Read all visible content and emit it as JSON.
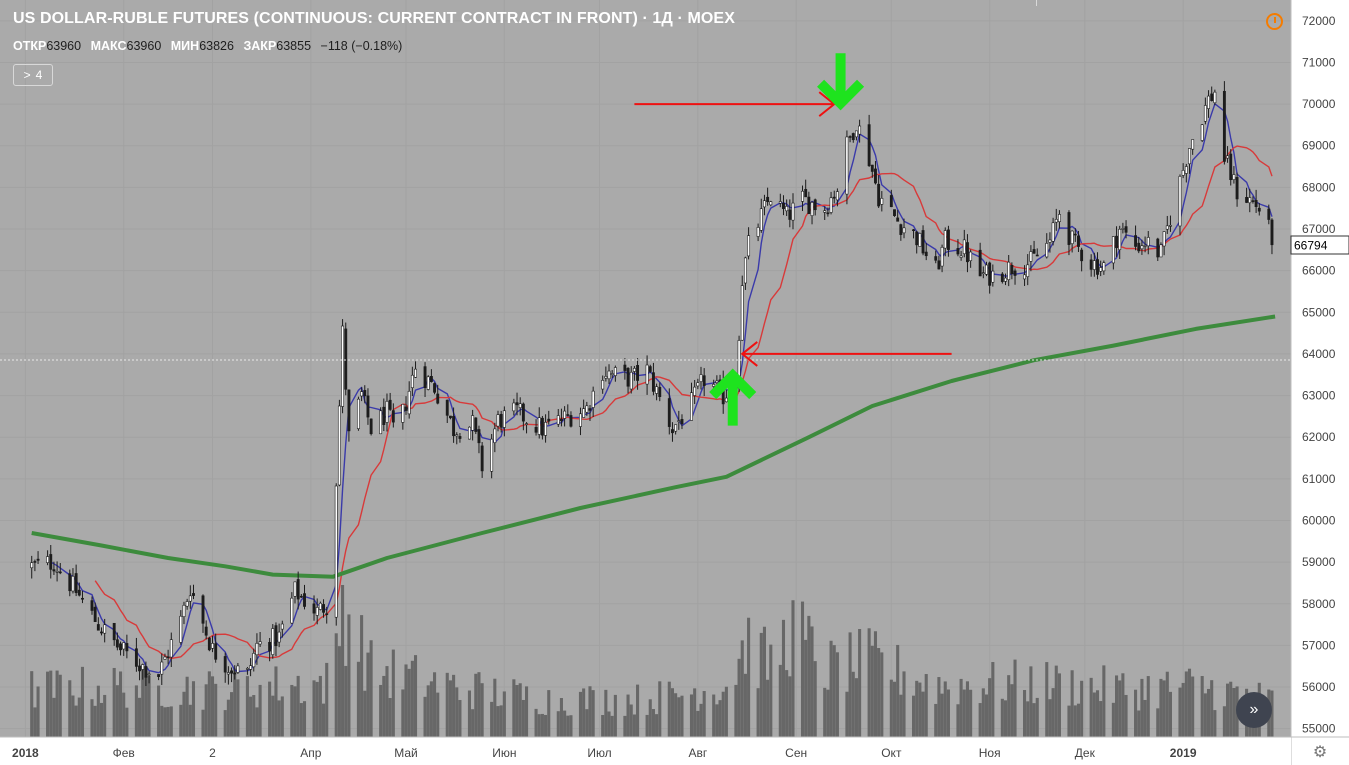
{
  "header": {
    "title": "US DOLLAR-RUBLE FUTURES (CONTINUOUS: CURRENT CONTRACT IN FRONT) · 1Д · MOEX",
    "ohlc": [
      {
        "key": "ОТКР",
        "value": "63960"
      },
      {
        "key": "МАКС",
        "value": "63960"
      },
      {
        "key": "МИН",
        "value": "63826"
      },
      {
        "key": "ЗАКР",
        "value": "63855"
      }
    ],
    "change": "−118 (−0.18%)",
    "indicator_toggle": {
      "chevron": ">",
      "count": "4"
    }
  },
  "price_axis": {
    "labels": [
      "72000",
      "71000",
      "70000",
      "69000",
      "68000",
      "67000",
      "66000",
      "65000",
      "64000",
      "63000",
      "62000",
      "61000",
      "60000",
      "59000",
      "58000",
      "57000",
      "56000",
      "55000"
    ],
    "last_price_label": "66794"
  },
  "time_axis": {
    "labels": [
      "2018",
      "Фев",
      "2",
      "Апр",
      "Май",
      "Июн",
      "Июл",
      "Авг",
      "Сен",
      "Окт",
      "Ноя",
      "Дек",
      "2019"
    ]
  },
  "icons": {
    "clock": "clock-icon",
    "scroll": "scroll-to-realtime-icon",
    "settings": "gear-icon"
  },
  "colors": {
    "background": "#aaaaaa",
    "candle_up": "#ffffff",
    "candle_down": "#1c1c1c",
    "fast_ma": "#3a3aaa",
    "slow_ma": "#d83a3a",
    "long_ma": "#3d8b3d",
    "volume": "#676767",
    "arrow_red": "#ee1111",
    "arrow_green": "#1ee31e"
  },
  "chart_data": {
    "type": "candlestick",
    "title": "US DOLLAR-RUBLE FUTURES (CONTINUOUS: CURRENT CONTRACT IN FRONT)",
    "interval": "1Д",
    "exchange": "MOEX",
    "ylim": [
      54800,
      72500
    ],
    "price_path": [
      [
        "2018-01-03",
        58900
      ],
      [
        "2018-01-10",
        59000
      ],
      [
        "2018-01-17",
        58300
      ],
      [
        "2018-01-24",
        57500
      ],
      [
        "2018-01-31",
        56900
      ],
      [
        "2018-02-07",
        56500
      ],
      [
        "2018-02-12",
        56300
      ],
      [
        "2018-02-19",
        57600
      ],
      [
        "2018-02-22",
        58400
      ],
      [
        "2018-03-01",
        56900
      ],
      [
        "2018-03-06",
        56500
      ],
      [
        "2018-03-12",
        56300
      ],
      [
        "2018-03-15",
        57000
      ],
      [
        "2018-03-22",
        57200
      ],
      [
        "2018-03-27",
        58300
      ],
      [
        "2018-04-03",
        57800
      ],
      [
        "2018-04-06",
        58000
      ],
      [
        "2018-04-09",
        61000
      ],
      [
        "2018-04-11",
        64500
      ],
      [
        "2018-04-13",
        62000
      ],
      [
        "2018-04-17",
        63000
      ],
      [
        "2018-04-20",
        62200
      ],
      [
        "2018-04-25",
        62600
      ],
      [
        "2018-04-28",
        62000
      ],
      [
        "2018-05-04",
        63700
      ],
      [
        "2018-05-10",
        63200
      ],
      [
        "2018-05-16",
        62200
      ],
      [
        "2018-05-22",
        62300
      ],
      [
        "2018-05-25",
        61300
      ],
      [
        "2018-05-30",
        62400
      ],
      [
        "2018-06-05",
        62600
      ],
      [
        "2018-06-13",
        62200
      ],
      [
        "2018-06-21",
        62500
      ],
      [
        "2018-06-27",
        62700
      ],
      [
        "2018-07-02",
        63600
      ],
      [
        "2018-07-05",
        63500
      ],
      [
        "2018-07-11",
        63400
      ],
      [
        "2018-07-16",
        63600
      ],
      [
        "2018-07-19",
        63100
      ],
      [
        "2018-07-24",
        62200
      ],
      [
        "2018-07-30",
        62800
      ],
      [
        "2018-08-03",
        63400
      ],
      [
        "2018-08-09",
        63000
      ],
      [
        "2018-08-13",
        63300
      ],
      [
        "2018-08-15",
        65800
      ],
      [
        "2018-08-17",
        66600
      ],
      [
        "2018-08-21",
        67300
      ],
      [
        "2018-08-24",
        67800
      ],
      [
        "2018-08-29",
        67300
      ],
      [
        "2018-09-03",
        67700
      ],
      [
        "2018-09-10",
        67500
      ],
      [
        "2018-09-14",
        68000
      ],
      [
        "2018-09-17",
        69000
      ],
      [
        "2018-09-20",
        69600
      ],
      [
        "2018-09-24",
        68700
      ],
      [
        "2018-09-27",
        67800
      ],
      [
        "2018-10-03",
        67200
      ],
      [
        "2018-10-09",
        66800
      ],
      [
        "2018-10-15",
        66000
      ],
      [
        "2018-10-18",
        66700
      ],
      [
        "2018-10-24",
        66500
      ],
      [
        "2018-10-29",
        65900
      ],
      [
        "2018-11-02",
        65900
      ],
      [
        "2018-11-08",
        66100
      ],
      [
        "2018-11-14",
        66200
      ],
      [
        "2018-11-20",
        66700
      ],
      [
        "2018-11-23",
        67400
      ],
      [
        "2018-11-27",
        66700
      ],
      [
        "2018-12-03",
        66200
      ],
      [
        "2018-12-07",
        66100
      ],
      [
        "2018-12-12",
        67000
      ],
      [
        "2018-12-17",
        66600
      ],
      [
        "2018-12-20",
        66700
      ],
      [
        "2018-12-25",
        66400
      ],
      [
        "2018-12-28",
        67300
      ],
      [
        "2019-01-03",
        69000
      ],
      [
        "2019-01-09",
        70100
      ],
      [
        "2019-01-11",
        70300
      ],
      [
        "2019-01-14",
        68700
      ],
      [
        "2019-01-18",
        67900
      ],
      [
        "2019-01-22",
        67700
      ],
      [
        "2019-01-25",
        67500
      ],
      [
        "2019-01-29",
        66800
      ]
    ],
    "volume_profile": [
      [
        "2018-01-03",
        0.28
      ],
      [
        "2018-02-01",
        0.3
      ],
      [
        "2018-03-01",
        0.28
      ],
      [
        "2018-04-08",
        0.32
      ],
      [
        "2018-04-11",
        0.8
      ],
      [
        "2018-04-20",
        0.4
      ],
      [
        "2018-05-15",
        0.3
      ],
      [
        "2018-06-15",
        0.22
      ],
      [
        "2018-07-15",
        0.22
      ],
      [
        "2018-08-10",
        0.3
      ],
      [
        "2018-08-16",
        0.55
      ],
      [
        "2018-08-24",
        0.42
      ],
      [
        "2018-08-31",
        0.65
      ],
      [
        "2018-09-10",
        0.4
      ],
      [
        "2018-09-24",
        0.45
      ],
      [
        "2018-10-15",
        0.3
      ],
      [
        "2018-11-15",
        0.32
      ],
      [
        "2018-12-15",
        0.28
      ],
      [
        "2019-01-05",
        0.3
      ],
      [
        "2019-01-29",
        0.22
      ]
    ],
    "series": [
      {
        "kind": "sma",
        "color": "#3a3aaa",
        "period": 5
      },
      {
        "kind": "sma",
        "color": "#d83a3a",
        "period": 15
      },
      {
        "kind": "ma",
        "color": "#3d8b3d",
        "values": [
          [
            "2018-01-03",
            59700
          ],
          [
            "2018-01-25",
            59400
          ],
          [
            "2018-02-15",
            59100
          ],
          [
            "2018-03-05",
            58900
          ],
          [
            "2018-03-20",
            58700
          ],
          [
            "2018-04-08",
            58650
          ],
          [
            "2018-04-25",
            59100
          ],
          [
            "2018-05-25",
            59700
          ],
          [
            "2018-06-25",
            60300
          ],
          [
            "2018-07-25",
            60800
          ],
          [
            "2018-08-10",
            61050
          ],
          [
            "2018-09-05",
            62000
          ],
          [
            "2018-09-25",
            62750
          ],
          [
            "2018-10-20",
            63350
          ],
          [
            "2018-11-15",
            63850
          ],
          [
            "2018-12-10",
            64200
          ],
          [
            "2019-01-05",
            64600
          ],
          [
            "2019-01-30",
            64900
          ]
        ]
      }
    ],
    "annotations": [
      {
        "type": "arrow",
        "color": "#ee1111",
        "from": [
          "2018-07-12",
          70000
        ],
        "to": [
          "2018-09-13",
          70000
        ]
      },
      {
        "type": "arrow",
        "color": "#ee1111",
        "from": [
          "2018-10-20",
          64000
        ],
        "to": [
          "2018-08-15",
          64000
        ]
      },
      {
        "type": "arrow",
        "color": "#1ee31e",
        "direction": "down",
        "at": [
          "2018-09-15",
          70500
        ]
      },
      {
        "type": "arrow",
        "color": "#1ee31e",
        "direction": "up",
        "at": [
          "2018-08-12",
          63000
        ]
      }
    ]
  }
}
